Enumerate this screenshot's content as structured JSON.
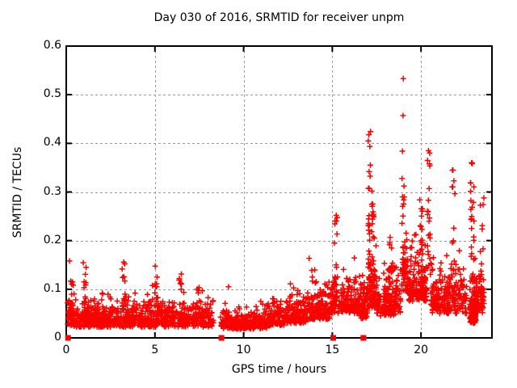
{
  "chart_data": {
    "type": "scatter",
    "title": "Day 030 of 2016, SRMTID for receiver unpm",
    "xlabel": "GPS time / hours",
    "ylabel": "SRMTID / TECUs",
    "xlim": [
      0,
      24
    ],
    "ylim": [
      0,
      0.6
    ],
    "xticks": [
      "0",
      "5",
      "10",
      "15",
      "20"
    ],
    "yticks": [
      "0",
      "0.1",
      "0.2",
      "0.3",
      "0.4",
      "0.5",
      "0.6"
    ],
    "grid": "dashed gray at major ticks, both axes",
    "legend": "none",
    "marker": "plus",
    "marker_color": "#ff0000",
    "grid_color": "#9a9a9a",
    "border_color": "#000000",
    "series": [
      {
        "name": "SRMTID scatter (red plus markers, ~2900 samples)",
        "clusters": [
          {
            "x": [
              0.05,
              0.45
            ],
            "n": 45,
            "dist": "band",
            "lo": 0.025,
            "sig": 0.04,
            "hi": 0.165
          },
          {
            "x": [
              0.3,
              4.2
            ],
            "n": 430,
            "dist": "band",
            "lo": 0.022,
            "sig": 0.027,
            "hi": 0.125
          },
          {
            "x": [
              4.2,
              8.3
            ],
            "n": 390,
            "dist": "band",
            "lo": 0.022,
            "sig": 0.027,
            "hi": 0.115
          },
          {
            "x": [
              8.7,
              11.3
            ],
            "n": 260,
            "dist": "band",
            "lo": 0.018,
            "sig": 0.02,
            "hi": 0.08
          },
          {
            "x": [
              11.3,
              12.3
            ],
            "n": 110,
            "dist": "band",
            "lo": 0.025,
            "sig": 0.024,
            "hi": 0.105
          },
          {
            "x": [
              12.3,
              13.6
            ],
            "n": 140,
            "dist": "band",
            "lo": 0.03,
            "sig": 0.027,
            "hi": 0.125
          },
          {
            "x": [
              13.6,
              14.9
            ],
            "n": 150,
            "dist": "band",
            "lo": 0.038,
            "sig": 0.032,
            "hi": 0.165
          },
          {
            "x": [
              14.9,
              16.5
            ],
            "n": 180,
            "dist": "band",
            "lo": 0.05,
            "sig": 0.038,
            "hi": 0.21
          },
          {
            "x": [
              16.5,
              17.0
            ],
            "n": 80,
            "dist": "band",
            "lo": 0.04,
            "sig": 0.035,
            "hi": 0.16
          },
          {
            "x": [
              17.0,
              17.5
            ],
            "n": 90,
            "dist": "band",
            "lo": 0.06,
            "sig": 0.06,
            "hi": 0.3
          },
          {
            "x": [
              17.5,
              18.85
            ],
            "n": 180,
            "dist": "band",
            "lo": 0.045,
            "sig": 0.042,
            "hi": 0.23
          },
          {
            "x": [
              18.9,
              19.3
            ],
            "n": 50,
            "dist": "band",
            "lo": 0.09,
            "sig": 0.07,
            "hi": 0.33
          },
          {
            "x": [
              19.3,
              20.35
            ],
            "n": 140,
            "dist": "band",
            "lo": 0.075,
            "sig": 0.05,
            "hi": 0.27
          },
          {
            "x": [
              20.55,
              22.6
            ],
            "n": 240,
            "dist": "band",
            "lo": 0.05,
            "sig": 0.042,
            "hi": 0.25
          },
          {
            "x": [
              22.75,
              23.1
            ],
            "n": 100,
            "dist": "band",
            "lo": 0.03,
            "sig": 0.028,
            "hi": 0.105
          },
          {
            "x": [
              23.0,
              23.55
            ],
            "n": 80,
            "dist": "band",
            "lo": 0.05,
            "sig": 0.05,
            "hi": 0.27
          },
          {
            "x": [
              0.95,
              1.12
            ],
            "n": 12,
            "dist": "col",
            "lo": 0.04,
            "hi": 0.155,
            "pow": 1
          },
          {
            "x": [
              3.15,
              3.32
            ],
            "n": 10,
            "dist": "col",
            "lo": 0.04,
            "hi": 0.16,
            "pow": 1
          },
          {
            "x": [
              4.95,
              5.12
            ],
            "n": 10,
            "dist": "col",
            "lo": 0.05,
            "hi": 0.155,
            "pow": 1
          },
          {
            "x": [
              6.35,
              6.52
            ],
            "n": 9,
            "dist": "col",
            "lo": 0.05,
            "hi": 0.145,
            "pow": 1
          },
          {
            "x": [
              7.38,
              7.52
            ],
            "n": 7,
            "dist": "col",
            "lo": 0.05,
            "hi": 0.12,
            "pow": 1
          },
          {
            "x": [
              15.1,
              15.3
            ],
            "n": 16,
            "dist": "col",
            "lo": 0.08,
            "hi": 0.25,
            "pow": 1.2
          },
          {
            "x": [
              17.02,
              17.16
            ],
            "n": 20,
            "dist": "col",
            "lo": 0.1,
            "hi": 0.43,
            "pow": 1.1
          },
          {
            "x": [
              17.18,
              17.35
            ],
            "n": 16,
            "dist": "col",
            "lo": 0.1,
            "hi": 0.37,
            "pow": 1.2
          },
          {
            "x": [
              18.2,
              18.4
            ],
            "n": 10,
            "dist": "col",
            "lo": 0.1,
            "hi": 0.27,
            "pow": 1
          },
          {
            "x": [
              18.92,
              19.08
            ],
            "n": 16,
            "dist": "col",
            "lo": 0.12,
            "hi": 0.33,
            "pow": 1
          },
          {
            "x": [
              19.9,
              20.1
            ],
            "n": 14,
            "dist": "col",
            "lo": 0.1,
            "hi": 0.3,
            "pow": 1.2
          },
          {
            "x": [
              20.35,
              20.55
            ],
            "n": 22,
            "dist": "col",
            "lo": 0.12,
            "hi": 0.385,
            "pow": 1.3
          },
          {
            "x": [
              21.75,
              21.92
            ],
            "n": 10,
            "dist": "col",
            "lo": 0.14,
            "hi": 0.345,
            "pow": 1.2
          },
          {
            "x": [
              22.78,
              23.0
            ],
            "n": 40,
            "dist": "col",
            "lo": 0.05,
            "hi": 0.36,
            "pow": 1.4
          },
          {
            "x": [
              23.35,
              23.55
            ],
            "n": 12,
            "dist": "col",
            "lo": 0.08,
            "hi": 0.3,
            "pow": 1.3
          }
        ],
        "outliers": [
          [
            19.0,
            0.533
          ],
          [
            18.99,
            0.457
          ],
          [
            18.95,
            0.384
          ],
          [
            9.15,
            0.105
          ],
          [
            0.18,
            0.158
          ],
          [
            15.22,
            0.252
          ],
          [
            20.42,
            0.385
          ],
          [
            22.85,
            0.36
          ],
          [
            21.8,
            0.345
          ]
        ]
      },
      {
        "name": "baseline gap markers (red filled squares)",
        "marker": "square",
        "points": [
          [
            0.1,
            0
          ],
          [
            8.75,
            0
          ],
          [
            15.05,
            0
          ],
          [
            16.75,
            0
          ]
        ]
      }
    ]
  }
}
